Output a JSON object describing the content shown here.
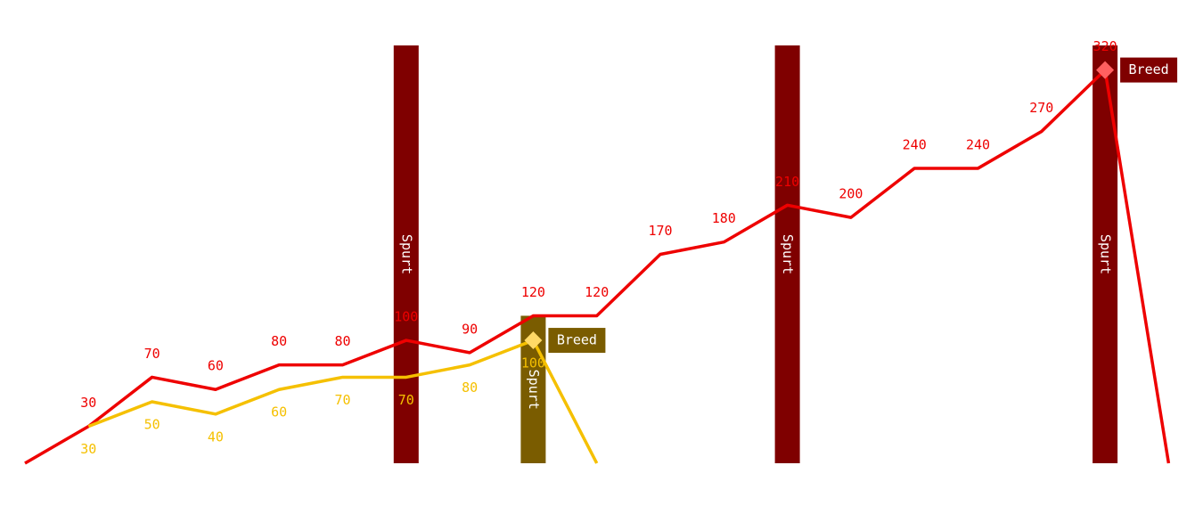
{
  "chart_data": {
    "type": "line",
    "categories": [
      null,
      null,
      null,
      null,
      null,
      null,
      null,
      null,
      null,
      null,
      null,
      null,
      null,
      null,
      null,
      null,
      null,
      null,
      null
    ],
    "ylim": [
      0,
      340
    ],
    "series": [
      {
        "color": "#ee0000",
        "label_side": "above",
        "values": [
          0,
          30,
          70,
          60,
          80,
          80,
          100,
          90,
          120,
          120,
          170,
          180,
          210,
          200,
          240,
          240,
          270,
          320,
          0
        ],
        "value_labels": [
          null,
          "30",
          "70",
          "60",
          "80",
          "80",
          "100",
          "90",
          "120",
          "120",
          "170",
          "180",
          "210",
          "200",
          "240",
          "240",
          "270",
          "320",
          null
        ]
      },
      {
        "color": "#f5c000",
        "label_side": "below",
        "values": [
          null,
          30,
          50,
          40,
          60,
          70,
          70,
          80,
          100,
          0,
          null,
          null,
          null,
          null,
          null,
          null,
          null,
          null,
          null
        ],
        "value_labels": [
          null,
          "30",
          "50",
          "40",
          "60",
          "70",
          "70",
          "80",
          "100",
          null,
          null,
          null,
          null,
          null,
          null,
          null,
          null,
          null,
          null
        ]
      }
    ],
    "spurts": [
      {
        "label": "Spurt",
        "index": 6,
        "value": 340,
        "color": "#7f0000"
      },
      {
        "label": "Spurt",
        "index": 8,
        "value": 120,
        "color": "#7a5c00"
      },
      {
        "label": "Spurt",
        "index": 12,
        "value": 340,
        "color": "#7f0000"
      },
      {
        "label": "Spurt",
        "index": 17,
        "value": 340,
        "color": "#7f0000"
      }
    ],
    "breeds": [
      {
        "label": "Breed",
        "series": 1,
        "index": 8,
        "color": "#ffd966",
        "box_color": "#7a5c00"
      },
      {
        "label": "Breed",
        "series": 0,
        "index": 17,
        "color": "#ff6060",
        "box_color": "#7f0000"
      }
    ]
  }
}
